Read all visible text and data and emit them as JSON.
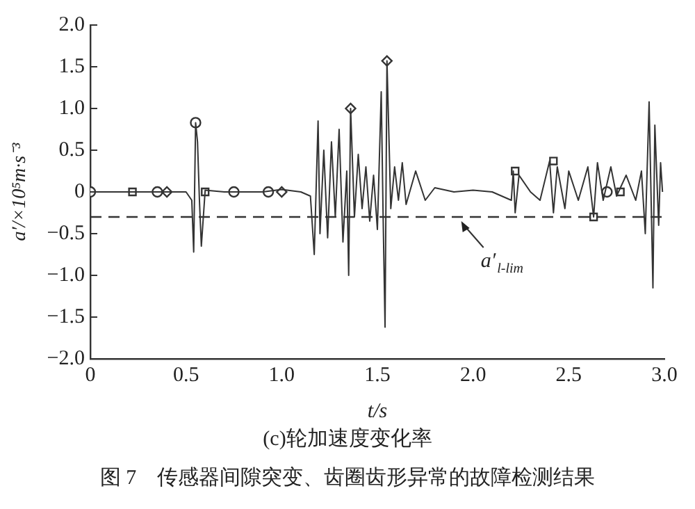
{
  "chart_data": {
    "type": "line",
    "title": "(c)轮加速度变化率",
    "xlabel": "t/s",
    "ylabel": "a′/×10⁵m·s⁻³",
    "annotations": [
      "图 7　传感器间隙突变、齿圈齿形异常的故障检测结果"
    ],
    "xlim": [
      0,
      3
    ],
    "xticks": [
      0,
      0.5,
      {
        "value": 1,
        "label": "1.0"
      },
      1.5,
      {
        "value": 2,
        "label": "2.0"
      },
      2.5,
      {
        "value": 3,
        "label": "3.0"
      }
    ],
    "ylim": [
      -2,
      2
    ],
    "yticks": [
      {
        "value": -2,
        "label": "−2.0"
      },
      {
        "value": -1.5,
        "label": "−1.5"
      },
      {
        "value": -1,
        "label": "−1.0"
      },
      {
        "value": -0.5,
        "label": "−0.5"
      },
      0,
      0.5,
      {
        "value": 1,
        "label": "1.0"
      },
      1.5,
      {
        "value": 2,
        "label": "2.0"
      }
    ],
    "grid": false,
    "ref_lines": [
      {
        "axis": "y",
        "value": -0.3,
        "label": "a′$_{l-lim}$",
        "line_style": "dashed",
        "color": "#333333"
      }
    ],
    "series": [
      {
        "type": "line",
        "color": "#333333",
        "marker": "none",
        "x": [
          0,
          0.2,
          0.5,
          0.53,
          0.54,
          0.55,
          0.56,
          0.57,
          0.58,
          0.6,
          0.7,
          0.9,
          1.0,
          1.1,
          1.15,
          1.17,
          1.19,
          1.2,
          1.22,
          1.24,
          1.26,
          1.28,
          1.3,
          1.32,
          1.34,
          1.35,
          1.36,
          1.38,
          1.4,
          1.42,
          1.44,
          1.46,
          1.48,
          1.5,
          1.52,
          1.53,
          1.54,
          1.55,
          1.57,
          1.59,
          1.61,
          1.63,
          1.65,
          1.7,
          1.75,
          1.8,
          1.9,
          2.0,
          2.1,
          2.2,
          2.21,
          2.22,
          2.24,
          2.3,
          2.35,
          2.4,
          2.42,
          2.44,
          2.48,
          2.5,
          2.55,
          2.6,
          2.63,
          2.65,
          2.68,
          2.72,
          2.75,
          2.8,
          2.85,
          2.88,
          2.9,
          2.92,
          2.94,
          2.95,
          2.97,
          2.98,
          2.99
        ],
        "values": [
          0,
          0,
          0,
          -0.1,
          -0.72,
          0.83,
          0.6,
          -0.1,
          -0.65,
          0.02,
          0,
          0,
          0.03,
          0,
          -0.05,
          -0.75,
          0.85,
          -0.5,
          0.5,
          -0.55,
          0.6,
          -0.3,
          0.75,
          -0.6,
          0.25,
          -1.0,
          1.0,
          -0.3,
          0.45,
          -0.2,
          0.3,
          -0.35,
          0.2,
          -0.45,
          1.2,
          -0.3,
          -1.62,
          1.57,
          -0.2,
          0.3,
          -0.1,
          0.35,
          -0.15,
          0.25,
          -0.1,
          0.05,
          0,
          0.02,
          0,
          -0.1,
          0.25,
          -0.25,
          0.2,
          0,
          -0.1,
          0.37,
          -0.25,
          0.3,
          -0.2,
          0.25,
          -0.1,
          0.3,
          -0.3,
          0.35,
          -0.1,
          0.3,
          -0.05,
          0.2,
          -0.1,
          0.25,
          -0.5,
          1.08,
          -1.15,
          0.8,
          -0.4,
          0.35,
          0
        ]
      },
      {
        "type": "scatter",
        "color": "#333333",
        "marker": "circle",
        "x": [
          0,
          0.35,
          0.55,
          0.75,
          0.93,
          2.7
        ],
        "values": [
          0,
          0,
          0.83,
          0,
          0,
          0
        ]
      },
      {
        "type": "scatter",
        "color": "#333333",
        "marker": "square",
        "x": [
          0.22,
          0.6,
          2.22,
          2.42,
          2.63,
          2.77
        ],
        "values": [
          0,
          0,
          0.25,
          0.37,
          -0.3,
          0
        ]
      },
      {
        "type": "scatter",
        "color": "#333333",
        "marker": "diamond",
        "x": [
          0.4,
          1.0,
          1.36,
          1.55
        ],
        "values": [
          0,
          0,
          1.0,
          1.57
        ]
      }
    ]
  }
}
